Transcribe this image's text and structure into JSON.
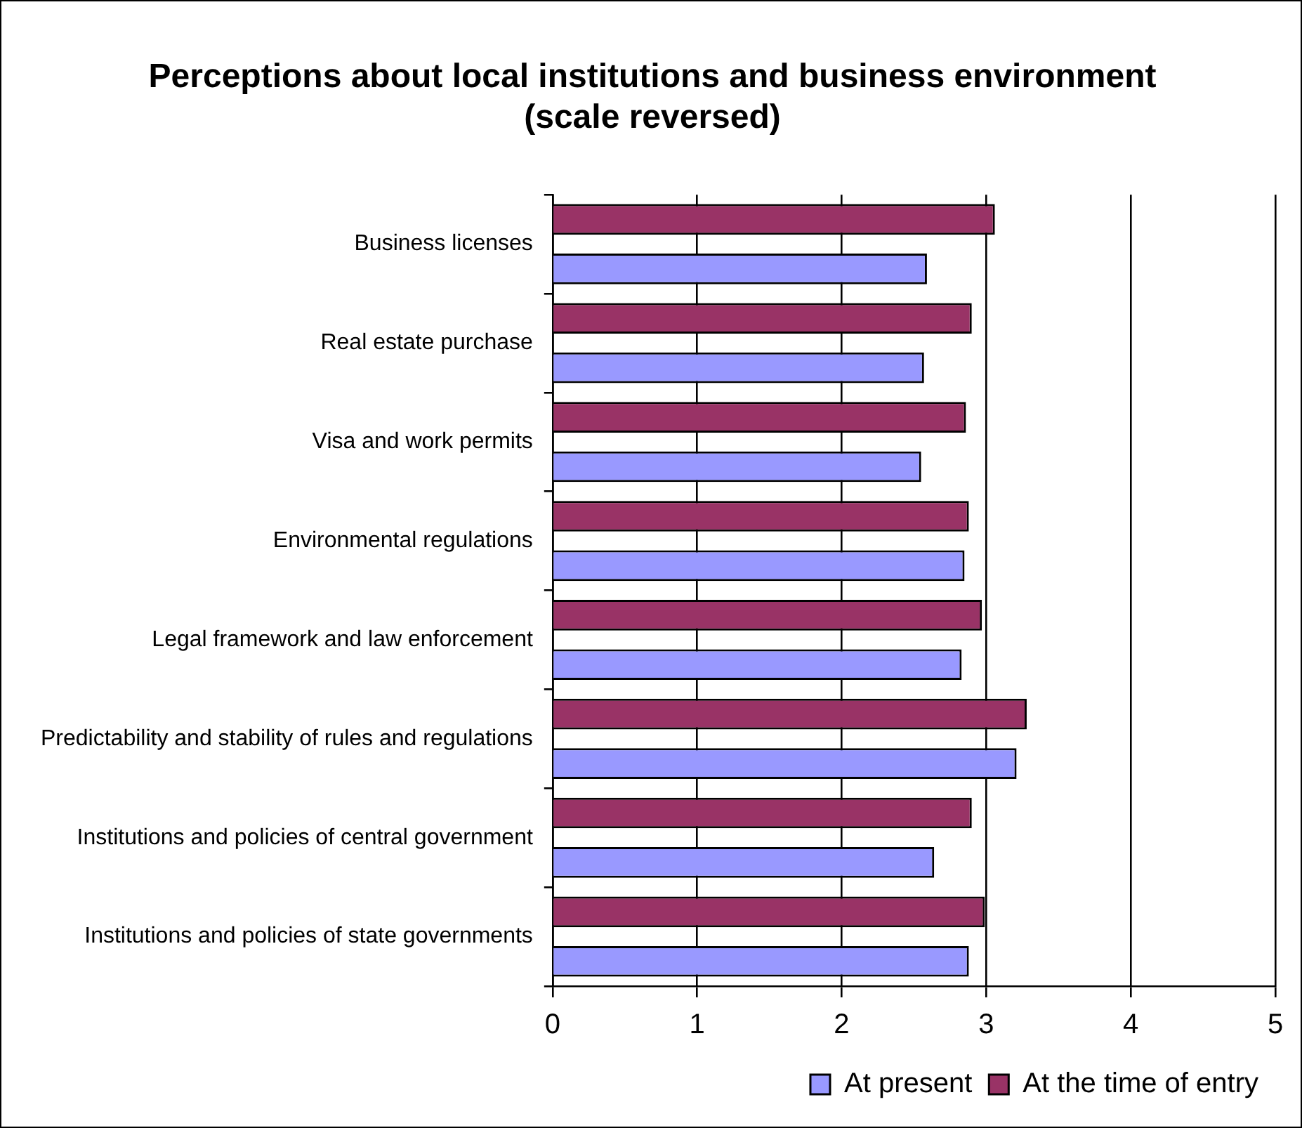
{
  "chart_data": {
    "type": "bar",
    "orientation": "horizontal",
    "title": "Perceptions about local institutions and business environment (scale reversed)",
    "categories": [
      "Business licenses",
      "Real estate purchase",
      "Visa and work permits",
      "Environmental regulations",
      "Legal framework and law enforcement",
      "Predictability and stability of rules and regulations",
      "Institutions and policies of central government",
      "Institutions and policies of state governments"
    ],
    "series": [
      {
        "name": "At present",
        "color": "#9999ff",
        "values": [
          2.59,
          2.57,
          2.55,
          2.85,
          2.83,
          3.21,
          2.64,
          2.88
        ]
      },
      {
        "name": "At the time of entry",
        "color": "#993366",
        "values": [
          3.06,
          2.9,
          2.86,
          2.88,
          2.97,
          3.28,
          2.9,
          2.99
        ]
      }
    ],
    "xlim": [
      0,
      5
    ],
    "xticks": [
      0,
      1,
      2,
      3,
      4,
      5
    ],
    "grid": "x",
    "legend": "bottom right"
  }
}
